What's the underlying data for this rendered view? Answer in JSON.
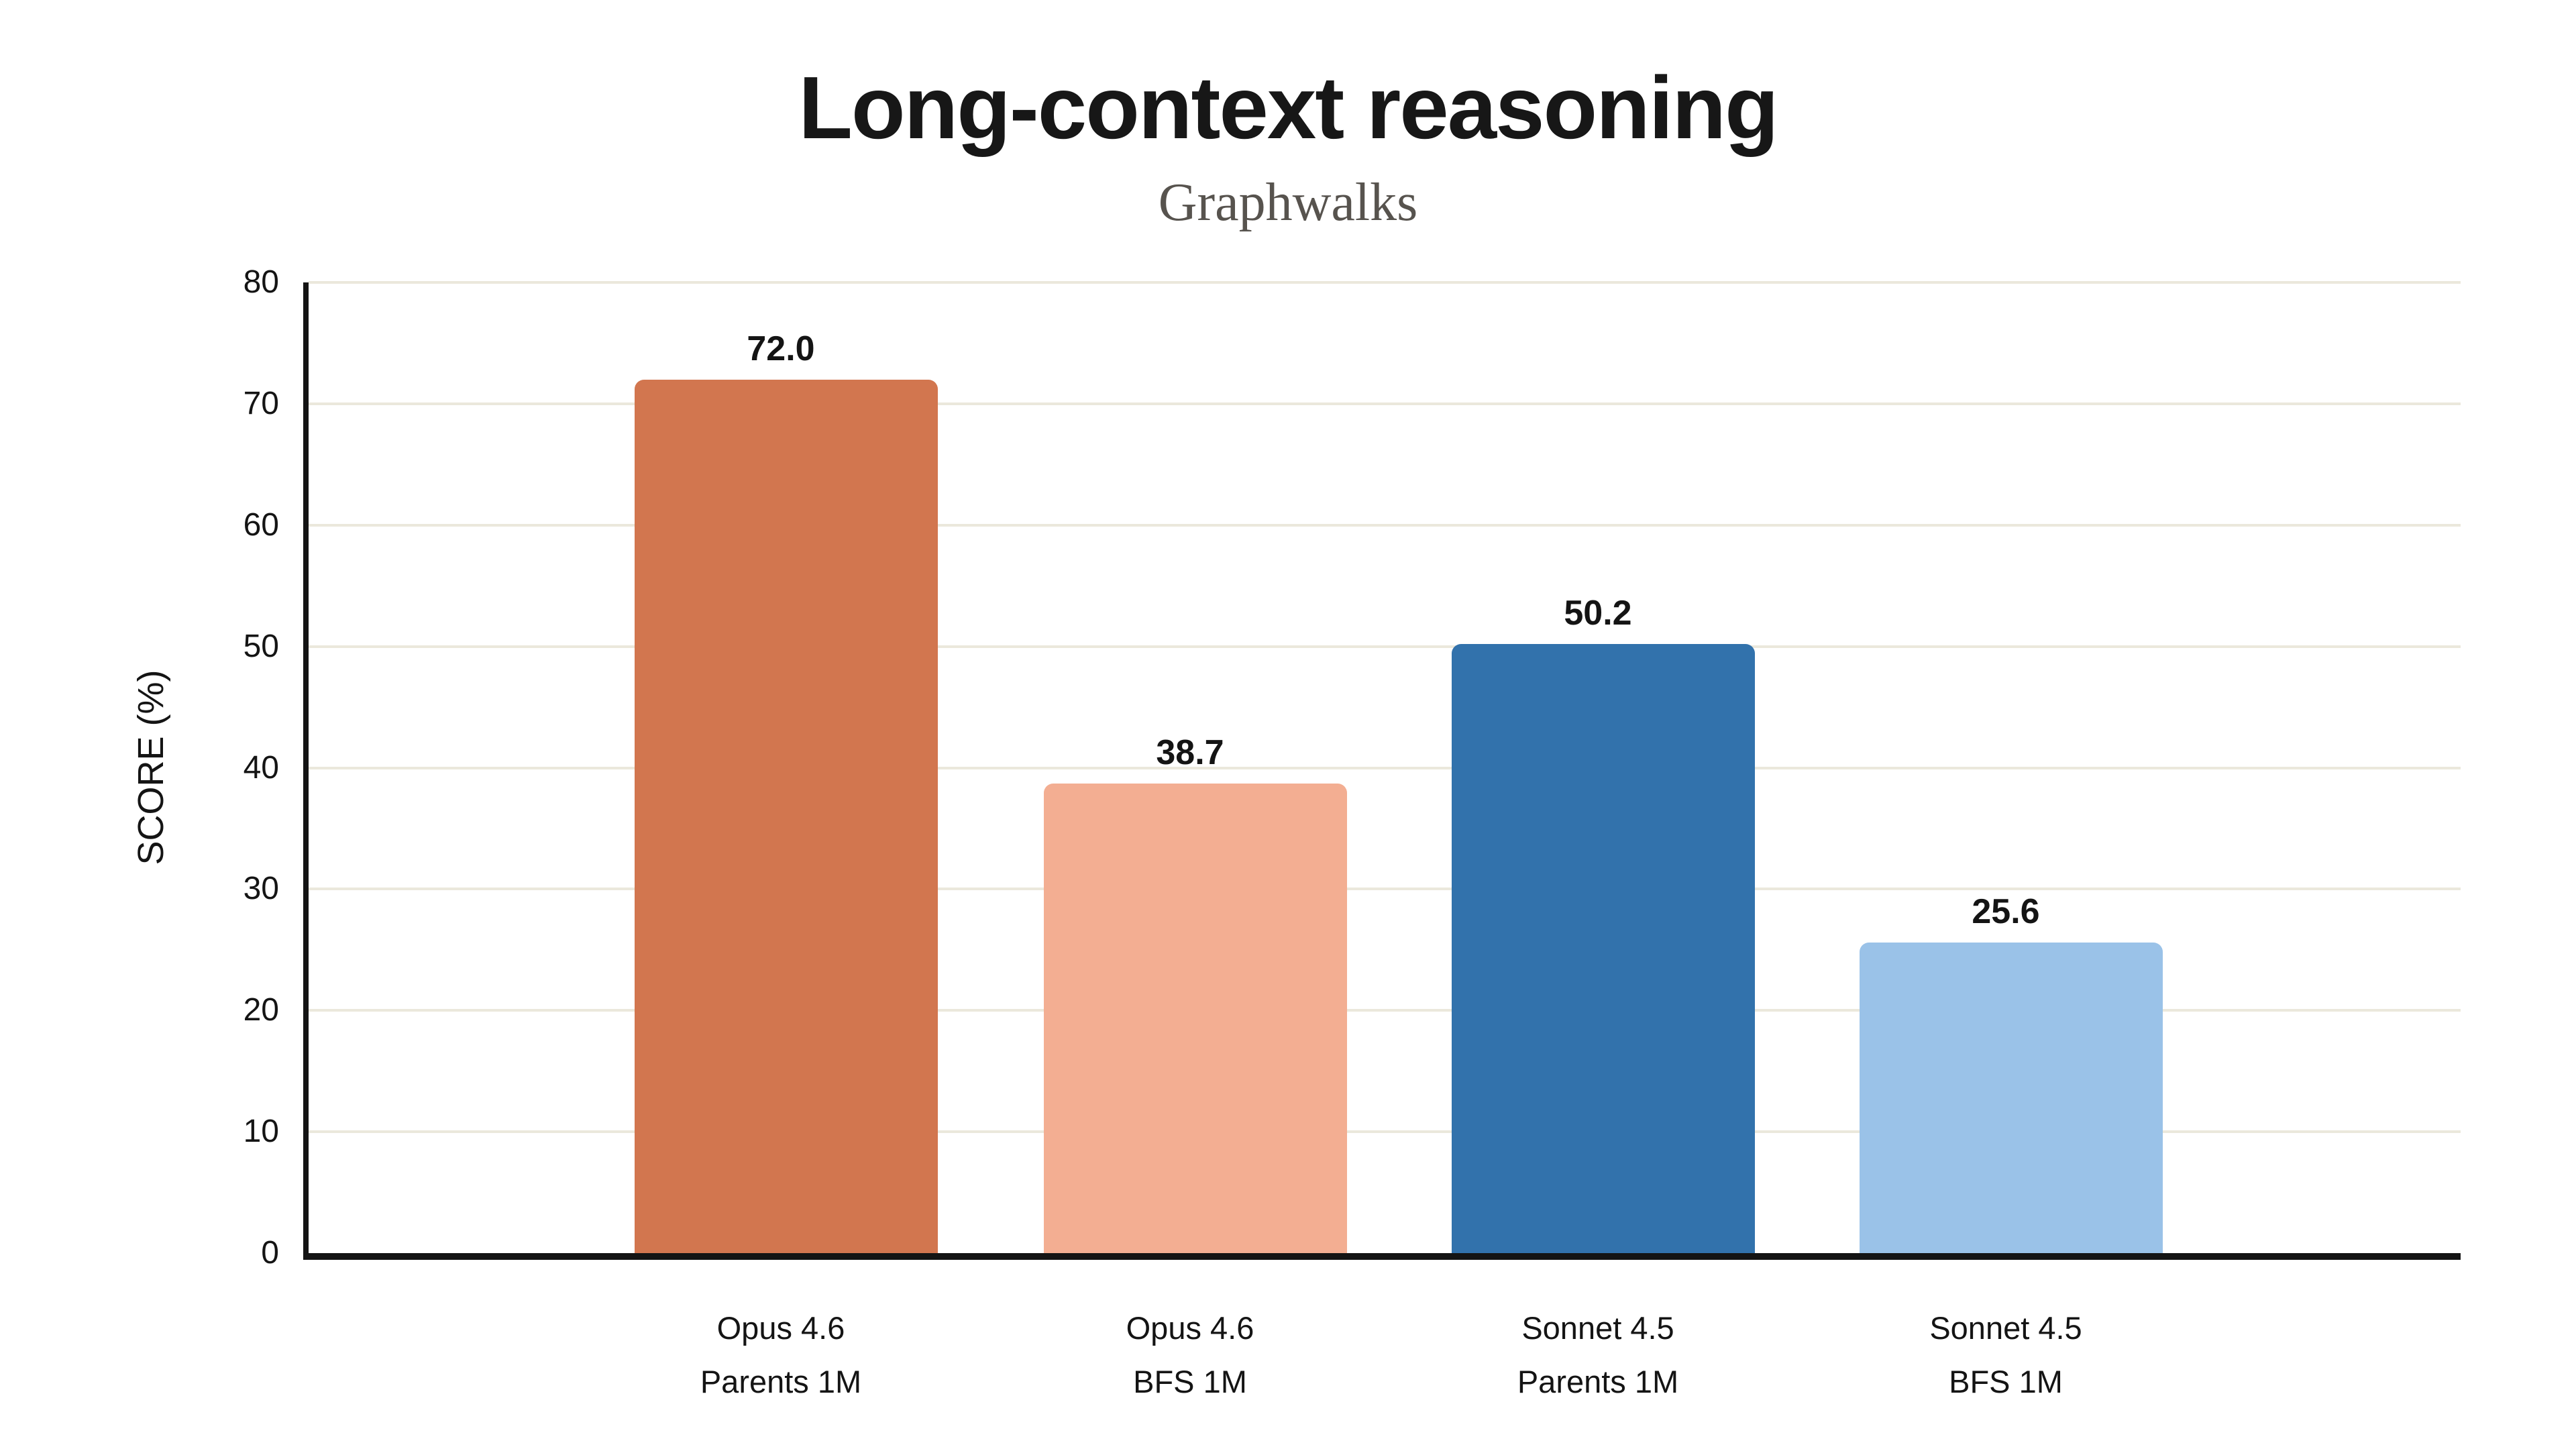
{
  "header": {
    "title": "Long-context reasoning",
    "subtitle": "Graphwalks"
  },
  "chart_data": {
    "type": "bar",
    "title": "Long-context reasoning",
    "subtitle": "Graphwalks",
    "categories": [
      [
        "Opus 4.6",
        "Parents 1M"
      ],
      [
        "Opus 4.6",
        "BFS 1M"
      ],
      [
        "Sonnet 4.5",
        "Parents 1M"
      ],
      [
        "Sonnet 4.5",
        "BFS 1M"
      ]
    ],
    "values": [
      72.0,
      38.7,
      50.2,
      25.6
    ],
    "value_labels": [
      "72.0",
      "38.7",
      "50.2",
      "25.6"
    ],
    "bar_colors": [
      "#D2764F",
      "#F3AE92",
      "#3272AC",
      "#9AC2E8"
    ],
    "xlabel": "",
    "ylabel": "SCORE (%)",
    "ylim": [
      0,
      80
    ],
    "yticks": [
      0,
      10,
      20,
      30,
      40,
      50,
      60,
      70,
      80
    ],
    "grid": true,
    "gridline_color": "#EBE8DC",
    "axis_color": "#141414",
    "text_color": "#141414",
    "subtitle_color": "#57534E",
    "background_color": "#FFFFFF",
    "legend_position": "none"
  }
}
